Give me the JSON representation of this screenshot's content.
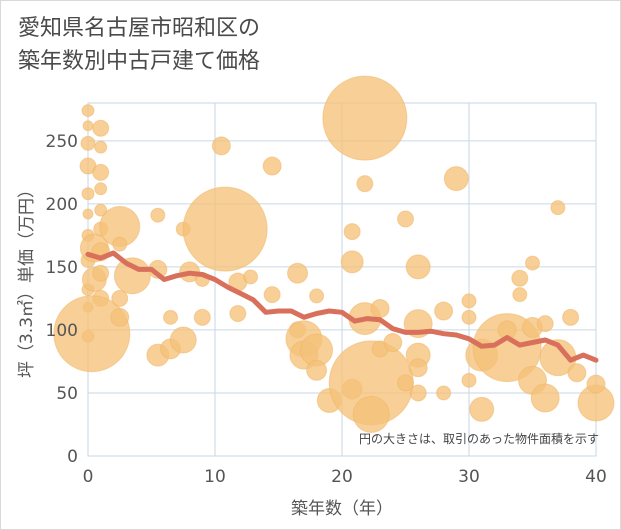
{
  "title": "愛知県名古屋市昭和区の\n築年数別中古戸建て価格",
  "note": "円の大きさは、取引のあった物件面積を示す",
  "chart_data": {
    "type": "scatter",
    "xlabel": "築年数（年）",
    "ylabel": "坪（3.3㎡）単価（万円）",
    "xlim": [
      0,
      40
    ],
    "ylim": [
      0,
      280
    ],
    "xticks": [
      0,
      10,
      20,
      30,
      40
    ],
    "yticks": [
      0,
      50,
      100,
      150,
      200,
      250
    ],
    "grid": true,
    "colors": {
      "bubble": "#f5c27a",
      "line": "#d9705c",
      "grid": "#c9d6e4"
    },
    "trend": {
      "x": [
        0,
        1,
        2,
        3,
        4,
        5,
        6,
        7,
        8,
        9,
        10,
        11,
        12,
        13,
        14,
        15,
        16,
        17,
        18,
        19,
        20,
        21,
        22,
        23,
        24,
        25,
        26,
        27,
        28,
        29,
        30,
        31,
        32,
        33,
        34,
        35,
        36,
        37,
        38,
        39,
        40
      ],
      "y": [
        160,
        157,
        161,
        153,
        148,
        148,
        140,
        143,
        145,
        144,
        140,
        134,
        129,
        124,
        114,
        115,
        115,
        110,
        113,
        115,
        114,
        107,
        109,
        108,
        101,
        98,
        98,
        99,
        97,
        96,
        93,
        87,
        88,
        94,
        88,
        90,
        92,
        88,
        76,
        80,
        76
      ]
    },
    "points": [
      {
        "x": 0,
        "y": 274,
        "s": 6
      },
      {
        "x": 0,
        "y": 262,
        "s": 5
      },
      {
        "x": 0,
        "y": 248,
        "s": 7
      },
      {
        "x": 0,
        "y": 230,
        "s": 8
      },
      {
        "x": 0,
        "y": 208,
        "s": 6
      },
      {
        "x": 0,
        "y": 192,
        "s": 5
      },
      {
        "x": 0,
        "y": 175,
        "s": 6
      },
      {
        "x": 0,
        "y": 155,
        "s": 7
      },
      {
        "x": 0,
        "y": 132,
        "s": 6
      },
      {
        "x": 0,
        "y": 118,
        "s": 5
      },
      {
        "x": 0,
        "y": 95,
        "s": 6
      },
      {
        "x": 0.5,
        "y": 165,
        "s": 14
      },
      {
        "x": 0.5,
        "y": 140,
        "s": 12
      },
      {
        "x": 1,
        "y": 260,
        "s": 8
      },
      {
        "x": 1,
        "y": 245,
        "s": 6
      },
      {
        "x": 1,
        "y": 225,
        "s": 8
      },
      {
        "x": 1,
        "y": 212,
        "s": 6
      },
      {
        "x": 1,
        "y": 195,
        "s": 6
      },
      {
        "x": 1,
        "y": 180,
        "s": 7
      },
      {
        "x": 1,
        "y": 162,
        "s": 9
      },
      {
        "x": 1,
        "y": 145,
        "s": 8
      },
      {
        "x": 1,
        "y": 125,
        "s": 8
      },
      {
        "x": 0.3,
        "y": 97,
        "s": 38
      },
      {
        "x": 2.5,
        "y": 182,
        "s": 20
      },
      {
        "x": 2.5,
        "y": 168,
        "s": 7
      },
      {
        "x": 2.5,
        "y": 125,
        "s": 8
      },
      {
        "x": 2.5,
        "y": 110,
        "s": 9
      },
      {
        "x": 3.5,
        "y": 143,
        "s": 18
      },
      {
        "x": 5.5,
        "y": 191,
        "s": 7
      },
      {
        "x": 5.5,
        "y": 80,
        "s": 11
      },
      {
        "x": 5.5,
        "y": 148,
        "s": 9
      },
      {
        "x": 6.5,
        "y": 110,
        "s": 7
      },
      {
        "x": 6.5,
        "y": 85,
        "s": 10
      },
      {
        "x": 7.5,
        "y": 180,
        "s": 7
      },
      {
        "x": 7.5,
        "y": 92,
        "s": 13
      },
      {
        "x": 8,
        "y": 146,
        "s": 10
      },
      {
        "x": 9,
        "y": 110,
        "s": 8
      },
      {
        "x": 9,
        "y": 140,
        "s": 7
      },
      {
        "x": 10.5,
        "y": 246,
        "s": 9
      },
      {
        "x": 10.8,
        "y": 180,
        "s": 42
      },
      {
        "x": 11.8,
        "y": 138,
        "s": 9
      },
      {
        "x": 11.8,
        "y": 113,
        "s": 8
      },
      {
        "x": 12.8,
        "y": 142,
        "s": 7
      },
      {
        "x": 14.5,
        "y": 230,
        "s": 9
      },
      {
        "x": 14.5,
        "y": 128,
        "s": 8
      },
      {
        "x": 16.5,
        "y": 145,
        "s": 10
      },
      {
        "x": 16.5,
        "y": 100,
        "s": 8
      },
      {
        "x": 17,
        "y": 93,
        "s": 18
      },
      {
        "x": 17,
        "y": 80,
        "s": 14
      },
      {
        "x": 18,
        "y": 84,
        "s": 16
      },
      {
        "x": 18,
        "y": 127,
        "s": 7
      },
      {
        "x": 18,
        "y": 68,
        "s": 10
      },
      {
        "x": 19,
        "y": 44,
        "s": 12
      },
      {
        "x": 20.8,
        "y": 178,
        "s": 8
      },
      {
        "x": 20.8,
        "y": 154,
        "s": 11
      },
      {
        "x": 20.8,
        "y": 53,
        "s": 10
      },
      {
        "x": 21.8,
        "y": 268,
        "s": 42
      },
      {
        "x": 21.8,
        "y": 216,
        "s": 8
      },
      {
        "x": 21.8,
        "y": 109,
        "s": 16
      },
      {
        "x": 22.3,
        "y": 58,
        "s": 42
      },
      {
        "x": 22.3,
        "y": 33,
        "s": 18
      },
      {
        "x": 23,
        "y": 117,
        "s": 9
      },
      {
        "x": 23,
        "y": 85,
        "s": 8
      },
      {
        "x": 24,
        "y": 90,
        "s": 9
      },
      {
        "x": 25,
        "y": 188,
        "s": 8
      },
      {
        "x": 25,
        "y": 58,
        "s": 8
      },
      {
        "x": 26,
        "y": 150,
        "s": 12
      },
      {
        "x": 26,
        "y": 105,
        "s": 14
      },
      {
        "x": 26,
        "y": 80,
        "s": 12
      },
      {
        "x": 26,
        "y": 70,
        "s": 9
      },
      {
        "x": 26,
        "y": 50,
        "s": 8
      },
      {
        "x": 28,
        "y": 115,
        "s": 9
      },
      {
        "x": 28,
        "y": 50,
        "s": 7
      },
      {
        "x": 29,
        "y": 220,
        "s": 12
      },
      {
        "x": 30,
        "y": 123,
        "s": 7
      },
      {
        "x": 30,
        "y": 110,
        "s": 7
      },
      {
        "x": 30,
        "y": 60,
        "s": 7
      },
      {
        "x": 31,
        "y": 80,
        "s": 16
      },
      {
        "x": 31,
        "y": 37,
        "s": 12
      },
      {
        "x": 33,
        "y": 86,
        "s": 34
      },
      {
        "x": 33,
        "y": 100,
        "s": 9
      },
      {
        "x": 34,
        "y": 141,
        "s": 8
      },
      {
        "x": 34,
        "y": 128,
        "s": 7
      },
      {
        "x": 35,
        "y": 153,
        "s": 7
      },
      {
        "x": 35,
        "y": 102,
        "s": 10
      },
      {
        "x": 35,
        "y": 60,
        "s": 14
      },
      {
        "x": 36,
        "y": 105,
        "s": 8
      },
      {
        "x": 36,
        "y": 46,
        "s": 14
      },
      {
        "x": 37,
        "y": 197,
        "s": 7
      },
      {
        "x": 37,
        "y": 78,
        "s": 18
      },
      {
        "x": 38,
        "y": 110,
        "s": 8
      },
      {
        "x": 38.5,
        "y": 66,
        "s": 9
      },
      {
        "x": 40,
        "y": 42,
        "s": 18
      },
      {
        "x": 40,
        "y": 57,
        "s": 9
      }
    ]
  }
}
